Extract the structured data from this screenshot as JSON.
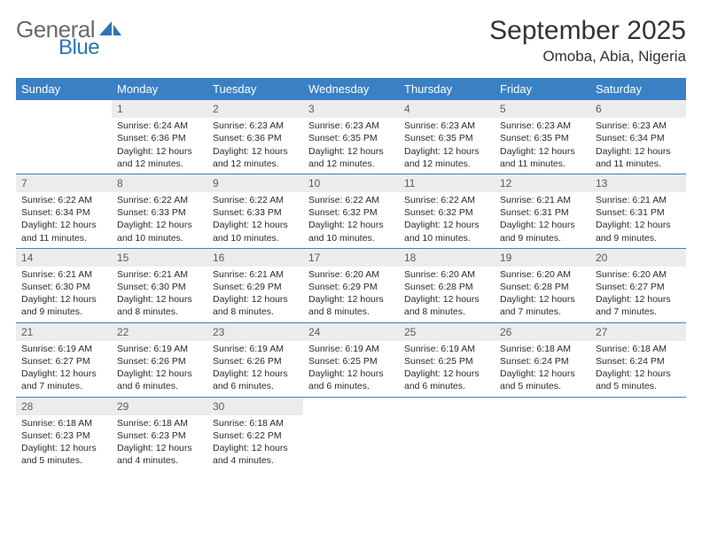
{
  "brand": {
    "general": "General",
    "blue": "Blue",
    "sail_color": "#2f74b5"
  },
  "title": "September 2025",
  "location": "Omoba, Abia, Nigeria",
  "colors": {
    "header_bg": "#3a81c4",
    "header_text": "#ffffff",
    "daynum_bg": "#ececec",
    "daynum_text": "#5b5b5b",
    "week_divider": "#3a81c4",
    "body_text": "#2b2b2b"
  },
  "day_names": [
    "Sunday",
    "Monday",
    "Tuesday",
    "Wednesday",
    "Thursday",
    "Friday",
    "Saturday"
  ],
  "first_day_index": 1,
  "days": [
    {
      "n": 1,
      "sunrise": "6:24 AM",
      "sunset": "6:36 PM",
      "daylight": "12 hours and 12 minutes."
    },
    {
      "n": 2,
      "sunrise": "6:23 AM",
      "sunset": "6:36 PM",
      "daylight": "12 hours and 12 minutes."
    },
    {
      "n": 3,
      "sunrise": "6:23 AM",
      "sunset": "6:35 PM",
      "daylight": "12 hours and 12 minutes."
    },
    {
      "n": 4,
      "sunrise": "6:23 AM",
      "sunset": "6:35 PM",
      "daylight": "12 hours and 12 minutes."
    },
    {
      "n": 5,
      "sunrise": "6:23 AM",
      "sunset": "6:35 PM",
      "daylight": "12 hours and 11 minutes."
    },
    {
      "n": 6,
      "sunrise": "6:23 AM",
      "sunset": "6:34 PM",
      "daylight": "12 hours and 11 minutes."
    },
    {
      "n": 7,
      "sunrise": "6:22 AM",
      "sunset": "6:34 PM",
      "daylight": "12 hours and 11 minutes."
    },
    {
      "n": 8,
      "sunrise": "6:22 AM",
      "sunset": "6:33 PM",
      "daylight": "12 hours and 10 minutes."
    },
    {
      "n": 9,
      "sunrise": "6:22 AM",
      "sunset": "6:33 PM",
      "daylight": "12 hours and 10 minutes."
    },
    {
      "n": 10,
      "sunrise": "6:22 AM",
      "sunset": "6:32 PM",
      "daylight": "12 hours and 10 minutes."
    },
    {
      "n": 11,
      "sunrise": "6:22 AM",
      "sunset": "6:32 PM",
      "daylight": "12 hours and 10 minutes."
    },
    {
      "n": 12,
      "sunrise": "6:21 AM",
      "sunset": "6:31 PM",
      "daylight": "12 hours and 9 minutes."
    },
    {
      "n": 13,
      "sunrise": "6:21 AM",
      "sunset": "6:31 PM",
      "daylight": "12 hours and 9 minutes."
    },
    {
      "n": 14,
      "sunrise": "6:21 AM",
      "sunset": "6:30 PM",
      "daylight": "12 hours and 9 minutes."
    },
    {
      "n": 15,
      "sunrise": "6:21 AM",
      "sunset": "6:30 PM",
      "daylight": "12 hours and 8 minutes."
    },
    {
      "n": 16,
      "sunrise": "6:21 AM",
      "sunset": "6:29 PM",
      "daylight": "12 hours and 8 minutes."
    },
    {
      "n": 17,
      "sunrise": "6:20 AM",
      "sunset": "6:29 PM",
      "daylight": "12 hours and 8 minutes."
    },
    {
      "n": 18,
      "sunrise": "6:20 AM",
      "sunset": "6:28 PM",
      "daylight": "12 hours and 8 minutes."
    },
    {
      "n": 19,
      "sunrise": "6:20 AM",
      "sunset": "6:28 PM",
      "daylight": "12 hours and 7 minutes."
    },
    {
      "n": 20,
      "sunrise": "6:20 AM",
      "sunset": "6:27 PM",
      "daylight": "12 hours and 7 minutes."
    },
    {
      "n": 21,
      "sunrise": "6:19 AM",
      "sunset": "6:27 PM",
      "daylight": "12 hours and 7 minutes."
    },
    {
      "n": 22,
      "sunrise": "6:19 AM",
      "sunset": "6:26 PM",
      "daylight": "12 hours and 6 minutes."
    },
    {
      "n": 23,
      "sunrise": "6:19 AM",
      "sunset": "6:26 PM",
      "daylight": "12 hours and 6 minutes."
    },
    {
      "n": 24,
      "sunrise": "6:19 AM",
      "sunset": "6:25 PM",
      "daylight": "12 hours and 6 minutes."
    },
    {
      "n": 25,
      "sunrise": "6:19 AM",
      "sunset": "6:25 PM",
      "daylight": "12 hours and 6 minutes."
    },
    {
      "n": 26,
      "sunrise": "6:18 AM",
      "sunset": "6:24 PM",
      "daylight": "12 hours and 5 minutes."
    },
    {
      "n": 27,
      "sunrise": "6:18 AM",
      "sunset": "6:24 PM",
      "daylight": "12 hours and 5 minutes."
    },
    {
      "n": 28,
      "sunrise": "6:18 AM",
      "sunset": "6:23 PM",
      "daylight": "12 hours and 5 minutes."
    },
    {
      "n": 29,
      "sunrise": "6:18 AM",
      "sunset": "6:23 PM",
      "daylight": "12 hours and 4 minutes."
    },
    {
      "n": 30,
      "sunrise": "6:18 AM",
      "sunset": "6:22 PM",
      "daylight": "12 hours and 4 minutes."
    }
  ],
  "labels": {
    "sunrise": "Sunrise:",
    "sunset": "Sunset:",
    "daylight": "Daylight:"
  }
}
